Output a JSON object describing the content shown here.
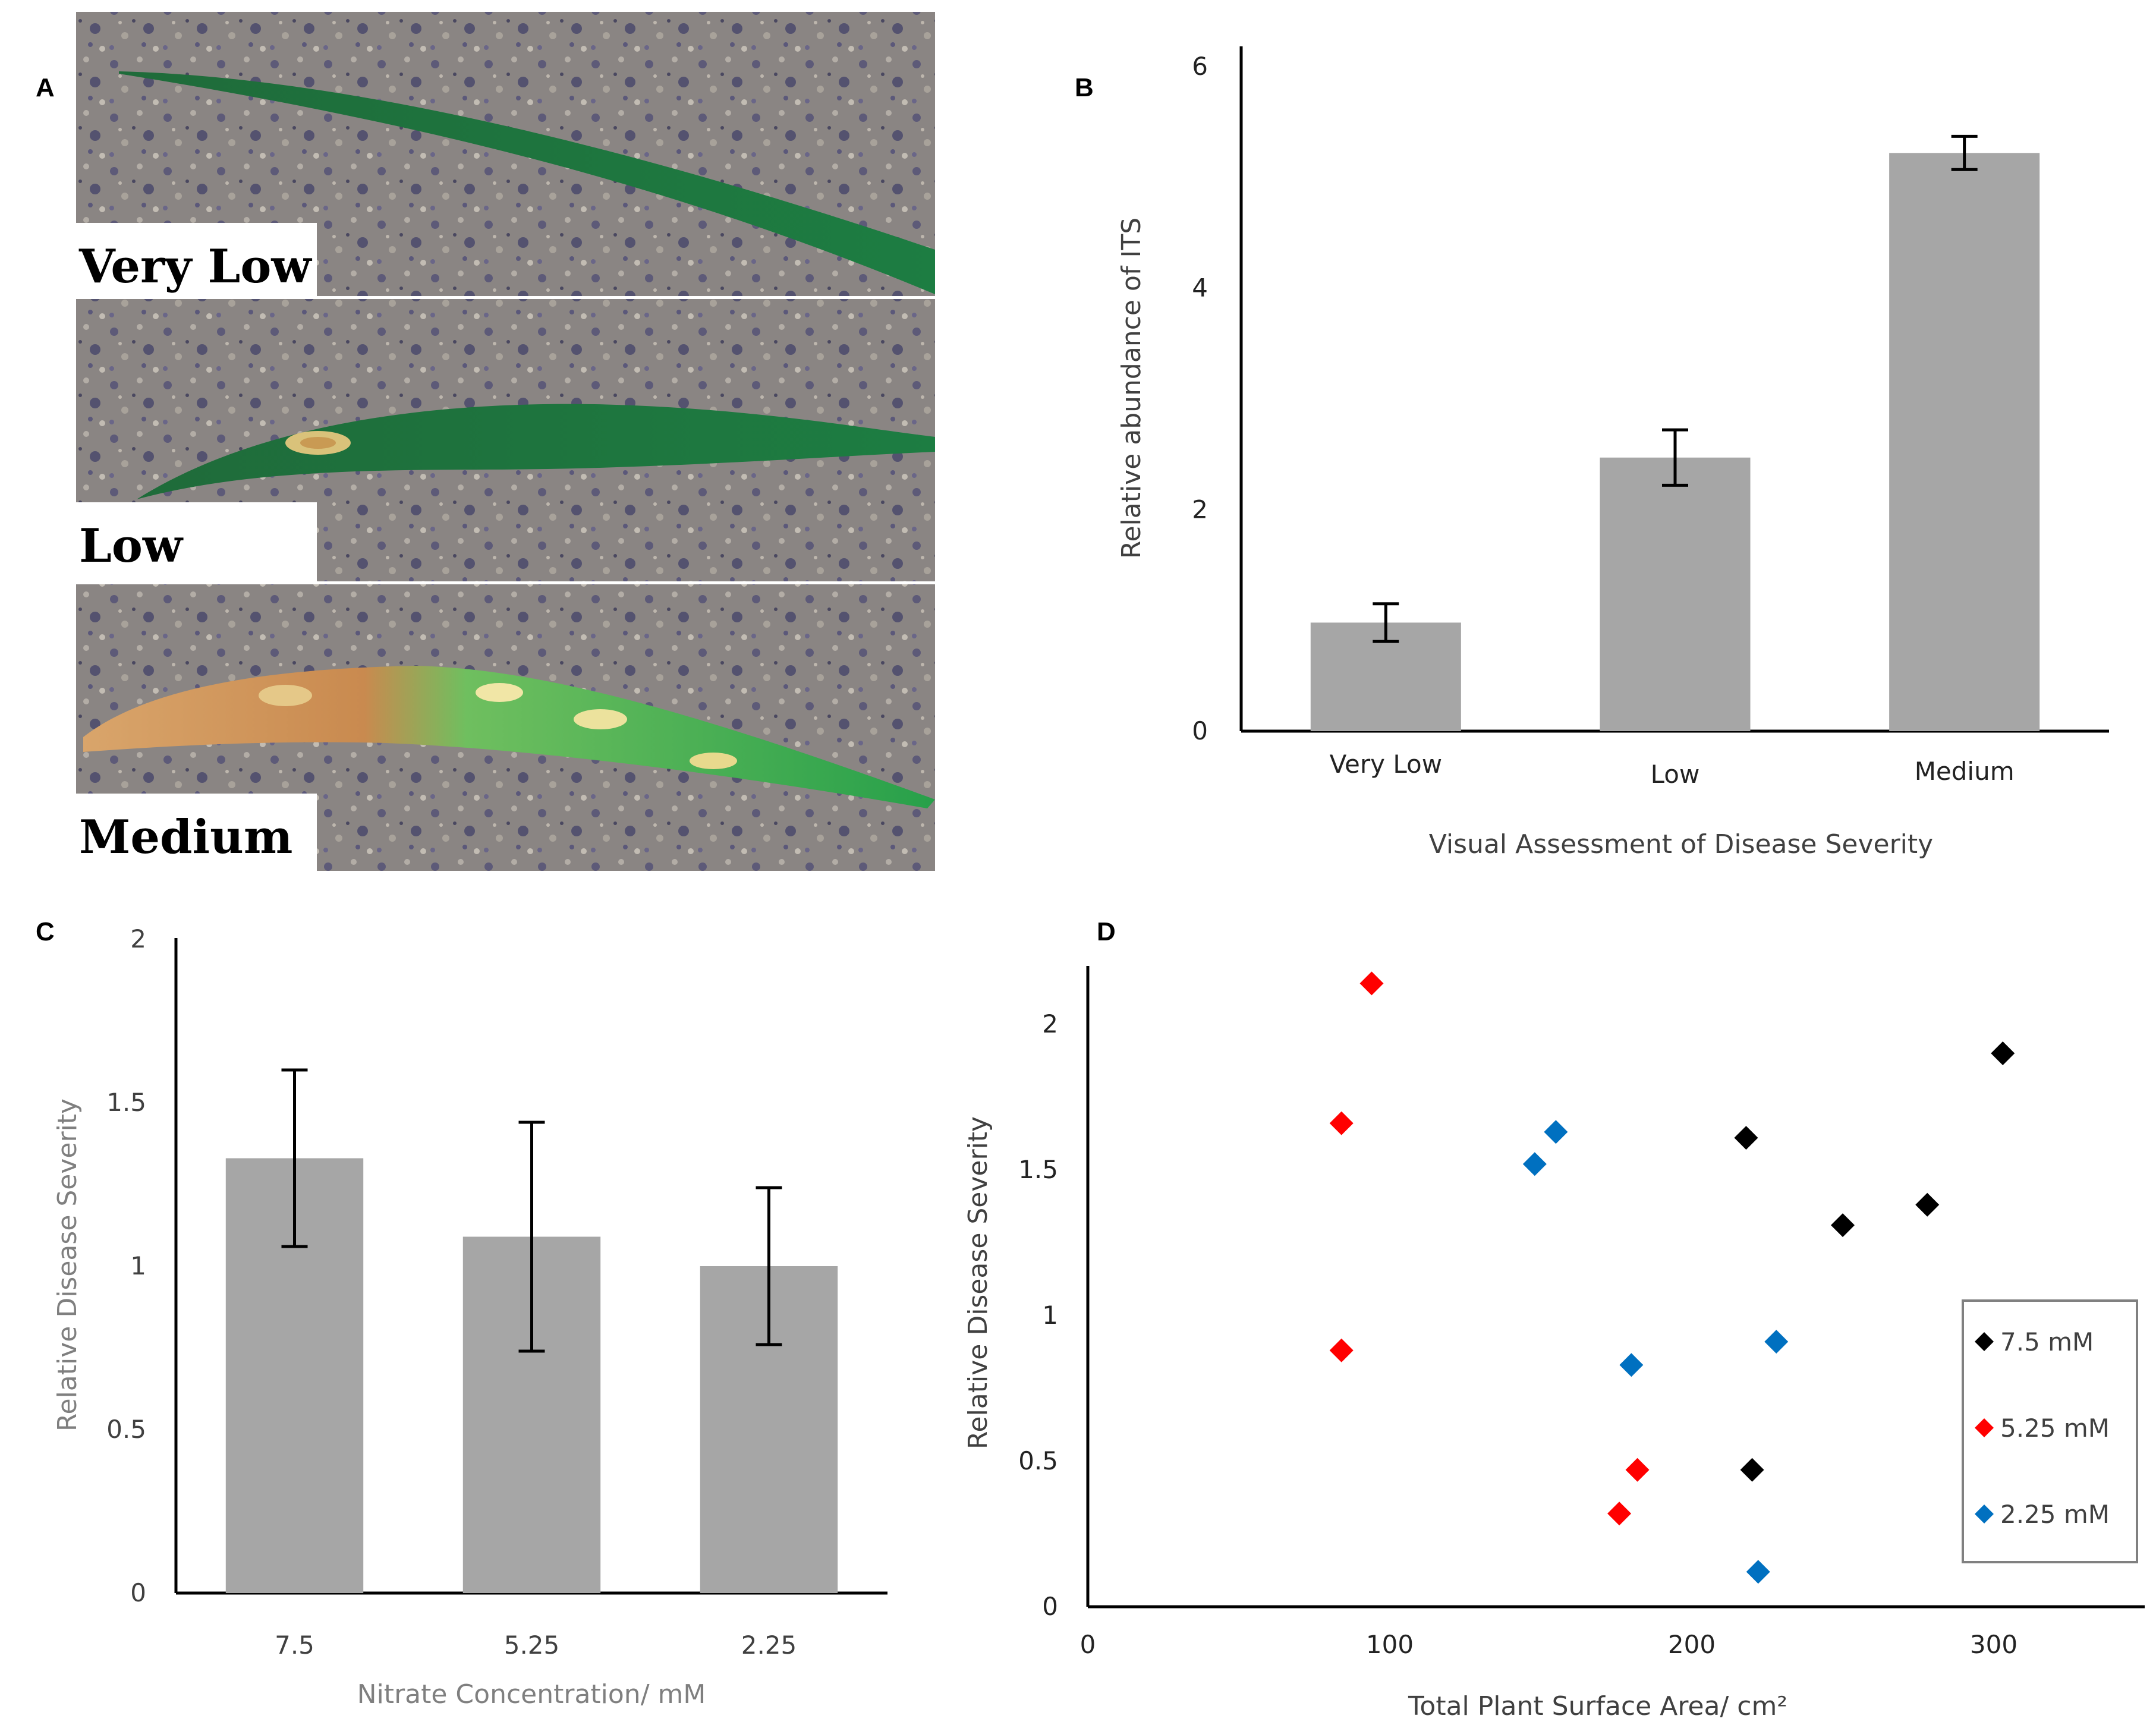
{
  "panel_labels": {
    "a": "A",
    "b": "B",
    "c": "C",
    "d": "D"
  },
  "panel_a": {
    "photos": [
      {
        "label": "Very Low",
        "leaf": "leaf-very-low"
      },
      {
        "label": "Low",
        "leaf": "leaf-low"
      },
      {
        "label": "Medium",
        "leaf": "leaf-medium"
      }
    ]
  },
  "colors": {
    "bar": "#a6a6a6",
    "error": "#000000",
    "s75": "#000000",
    "s525": "#ff0000",
    "s225": "#0070c0"
  },
  "chart_data": [
    {
      "id": "B",
      "type": "bar",
      "categories": [
        "Very Low",
        "Low",
        "Medium"
      ],
      "values": [
        0.98,
        2.47,
        5.22
      ],
      "errors": [
        0.17,
        0.25,
        0.15
      ],
      "xlabel": "Visual Assessment of Disease Severity",
      "ylabel": "Relative abundance of ITS",
      "ylim": [
        0,
        6
      ],
      "yticks": [
        "0",
        "2",
        "4",
        "6"
      ],
      "grid": false
    },
    {
      "id": "C",
      "type": "bar",
      "categories": [
        "7.5",
        "5.25",
        "2.25"
      ],
      "values": [
        1.33,
        1.09,
        1.0
      ],
      "errors": [
        0.27,
        0.35,
        0.24
      ],
      "xlabel": "Nitrate Concentration/ mM",
      "ylabel": "Relative Disease Severity",
      "ylim": [
        0,
        2
      ],
      "yticks": [
        "0",
        "0.5",
        "1",
        "1.5",
        "2"
      ],
      "grid": false
    },
    {
      "id": "D",
      "type": "scatter",
      "xlabel": "Total Plant Surface Area/ cm²",
      "ylabel": "Relative Disease Severity",
      "xlim": [
        0,
        350
      ],
      "ylim": [
        0,
        2.2
      ],
      "xticks": [
        "0",
        "100",
        "200",
        "300"
      ],
      "yticks": [
        "0",
        "0.5",
        "1",
        "1.5",
        "2"
      ],
      "legend_position": "right",
      "grid": false,
      "series": [
        {
          "name": "7.5 mM",
          "points": [
            [
              218,
              1.61
            ],
            [
              250,
              1.31
            ],
            [
              278,
              1.38
            ],
            [
              303,
              1.9
            ],
            [
              220,
              0.47
            ]
          ]
        },
        {
          "name": "5.25 mM",
          "points": [
            [
              94,
              2.14
            ],
            [
              84,
              1.66
            ],
            [
              84,
              0.88
            ],
            [
              182,
              0.47
            ],
            [
              176,
              0.32
            ]
          ]
        },
        {
          "name": "2.25 mM",
          "points": [
            [
              155,
              1.63
            ],
            [
              148,
              1.52
            ],
            [
              180,
              0.83
            ],
            [
              228,
              0.91
            ],
            [
              222,
              0.12
            ]
          ]
        }
      ]
    }
  ]
}
